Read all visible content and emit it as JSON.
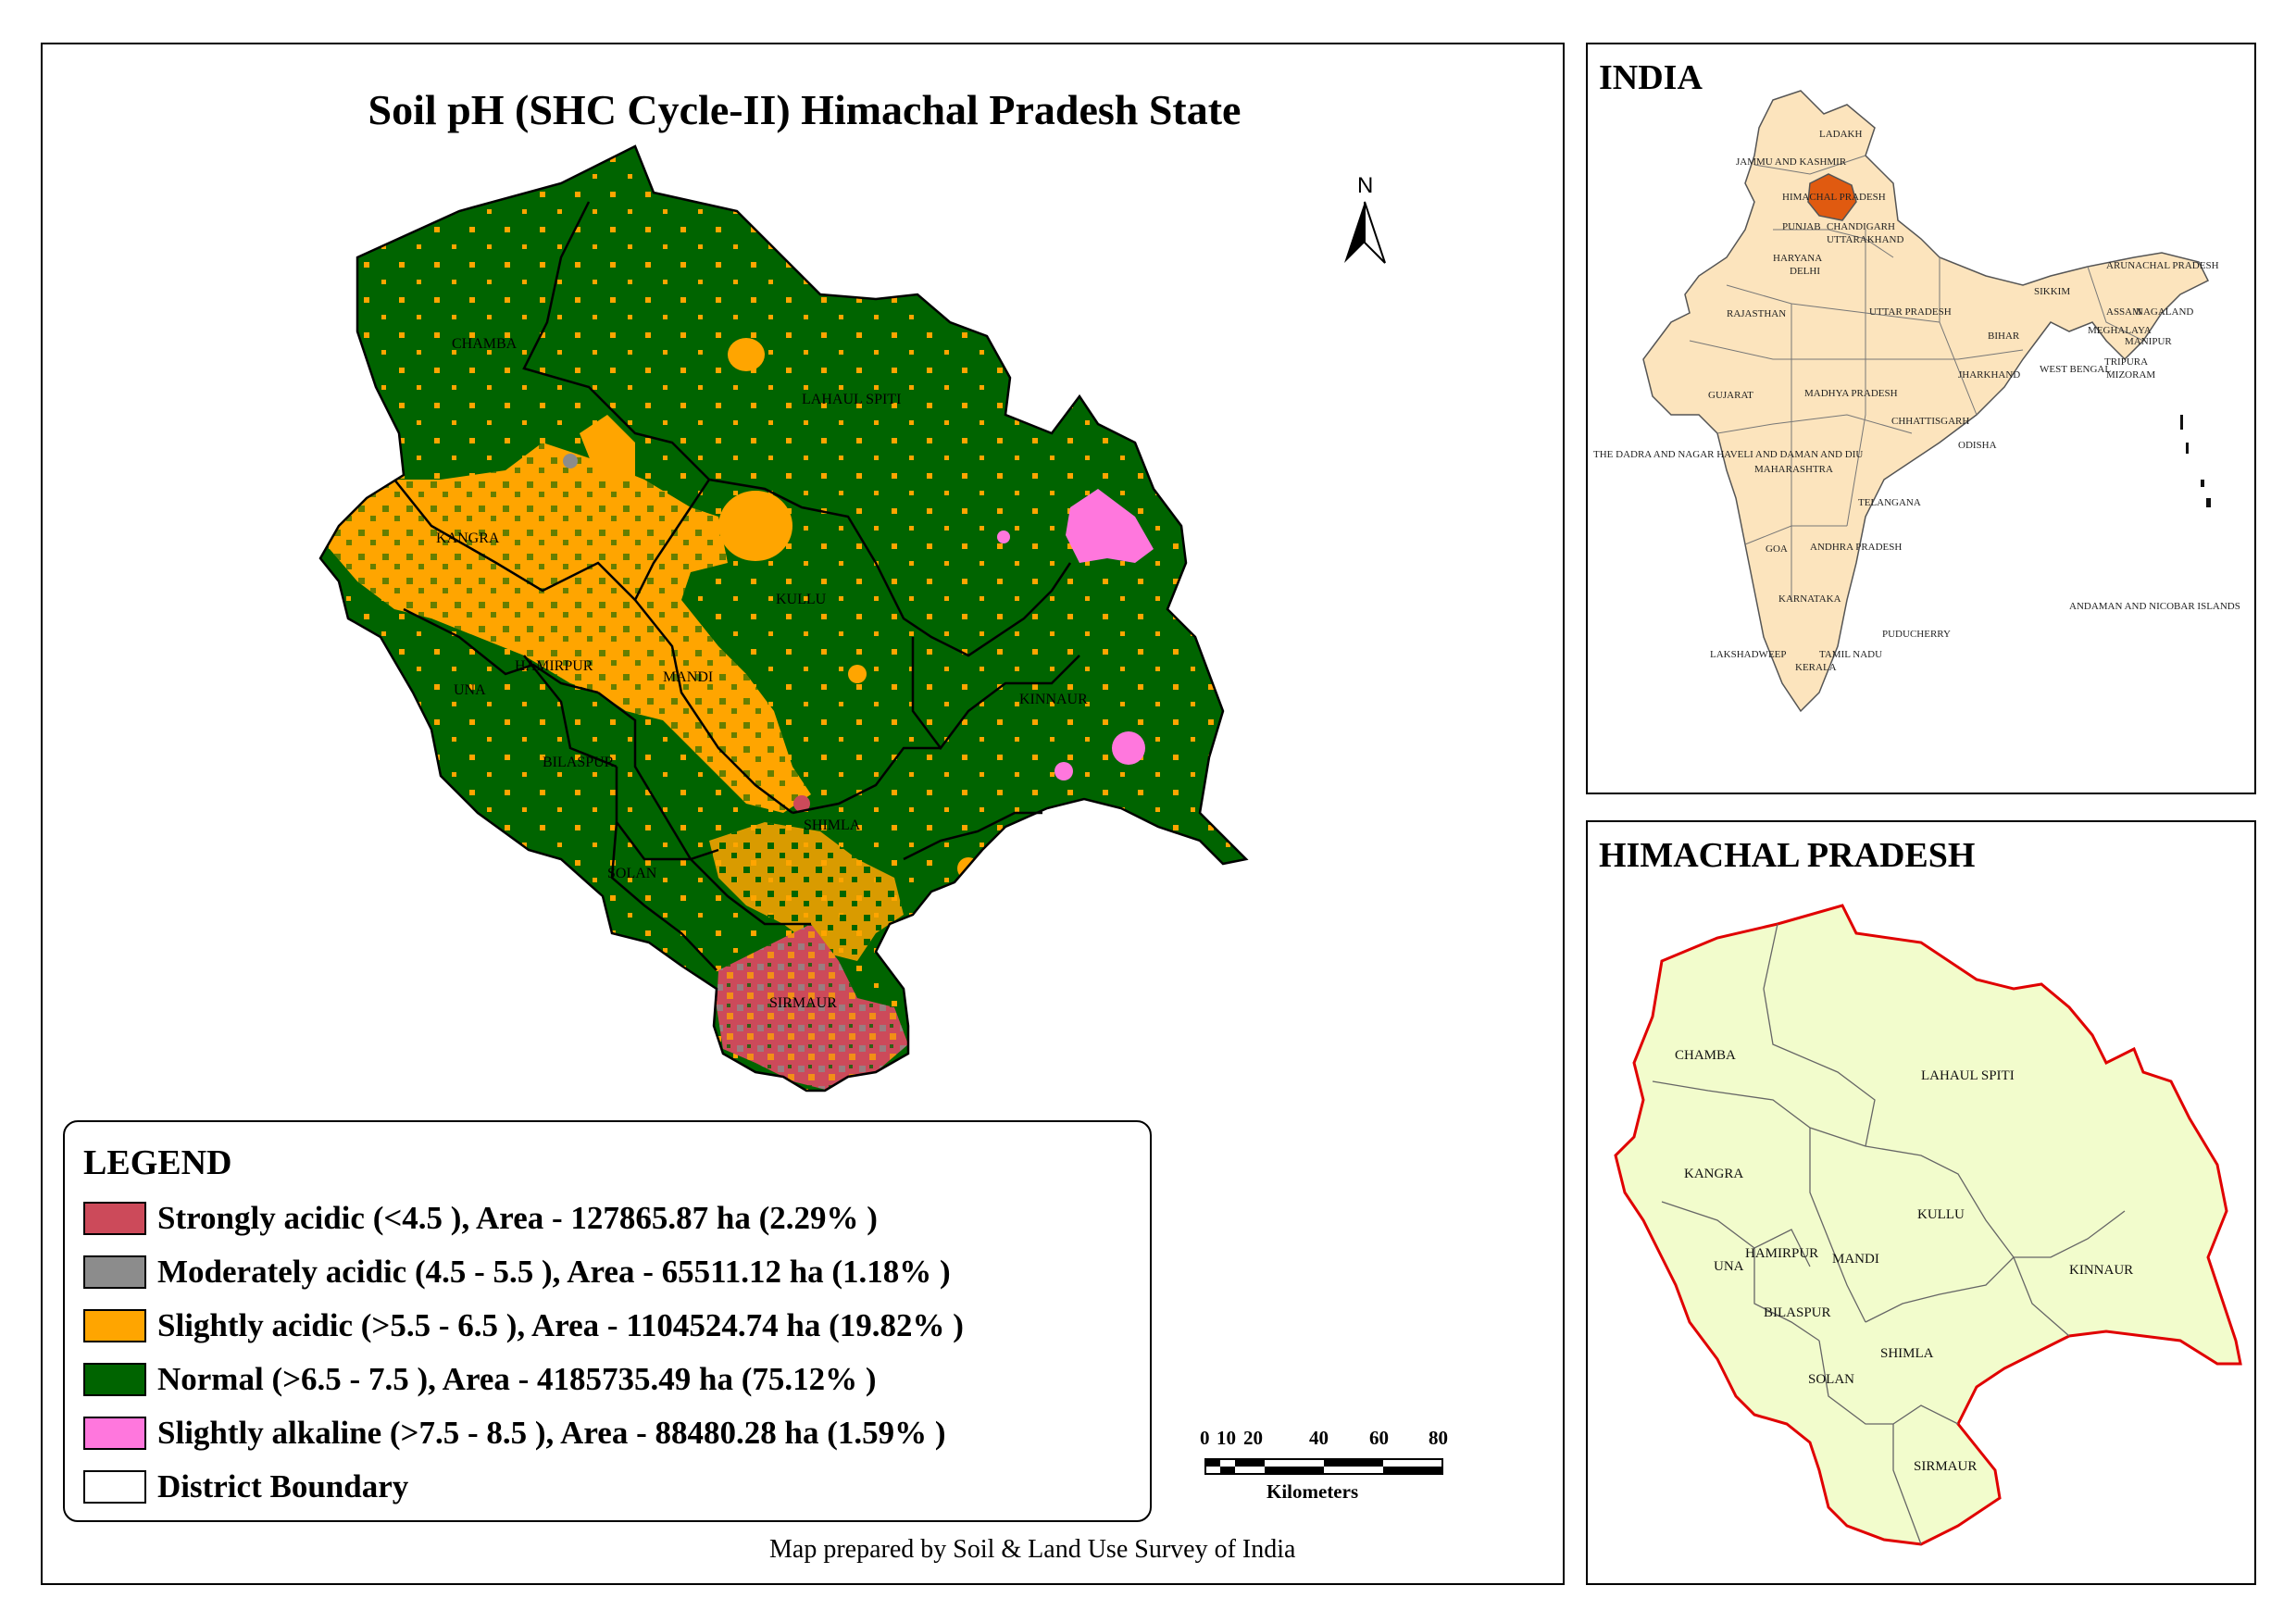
{
  "main": {
    "title": "Soil pH (SHC Cycle-II) Himachal Pradesh State",
    "north_label": "N",
    "credit": "Map prepared by Soil & Land Use Survey of India",
    "districts": [
      "CHAMBA",
      "LAHAUL SPITI",
      "KANGRA",
      "KULLU",
      "HAMIRPUR",
      "MANDI",
      "UNA",
      "KINNAUR",
      "BILASPUR",
      "SHIMLA",
      "SOLAN",
      "SIRMAUR"
    ]
  },
  "legend": {
    "title": "LEGEND",
    "items": [
      {
        "label": "Strongly acidic  (<4.5 ), Area - 127865.87  ha (2.29% )",
        "color": "#cc4a5a"
      },
      {
        "label": "Moderately acidic  (4.5 - 5.5 ), Area - 65511.12  ha (1.18% )",
        "color": "#8c8c8c"
      },
      {
        "label": "Slightly acidic  (>5.5 - 6.5 ), Area - 1104524.74  ha (19.82% )",
        "color": "#ffa500"
      },
      {
        "label": "Normal  (>6.5 - 7.5 ), Area - 4185735.49  ha (75.12% )",
        "color": "#006400"
      },
      {
        "label": "Slightly alkaline  (>7.5 - 8.5 ), Area - 88480.28  ha (1.59% )",
        "color": "#ff77dd"
      },
      {
        "label": "District Boundary",
        "color": "#ffffff"
      }
    ]
  },
  "scale_bar": {
    "ticks": [
      "0",
      "10",
      "20",
      "40",
      "60",
      "80"
    ],
    "unit": "Kilometers"
  },
  "india_inset": {
    "title": "INDIA",
    "highlight_color": "#e05a10",
    "fill_color": "#fce4bd",
    "labels": [
      "LADAKH",
      "JAMMU AND KASHMIR",
      "HIMACHAL PRADESH",
      "PUNJAB",
      "CHANDIGARH",
      "UTTARAKHAND",
      "HARYANA",
      "DELHI",
      "RAJASTHAN",
      "UTTAR PRADESH",
      "SIKKIM",
      "ARUNACHAL PRADESH",
      "ASSAM",
      "NAGALAND",
      "MEGHALAYA",
      "MANIPUR",
      "BIHAR",
      "WEST BENGAL",
      "TRIPURA",
      "MIZORAM",
      "JHARKHAND",
      "GUJARAT",
      "MADHYA PRADESH",
      "CHHATTISGARH",
      "ODISHA",
      "THE DADRA AND NAGAR HAVELI AND DAMAN AND DIU",
      "MAHARASHTRA",
      "TELANGANA",
      "GOA",
      "ANDHRA PRADESH",
      "KARNATAKA",
      "ANDAMAN AND NICOBAR ISLANDS",
      "PUDUCHERRY",
      "LAKSHADWEEP",
      "TAMIL NADU",
      "KERALA"
    ]
  },
  "hp_inset": {
    "title": "HIMACHAL PRADESH",
    "fill_color": "#f2fccc",
    "border_color": "#e00000",
    "labels": [
      "CHAMBA",
      "LAHAUL SPITI",
      "KANGRA",
      "KULLU",
      "HAMIRPUR",
      "MANDI",
      "UNA",
      "KINNAUR",
      "BILASPUR",
      "SHIMLA",
      "SOLAN",
      "SIRMAUR"
    ]
  }
}
